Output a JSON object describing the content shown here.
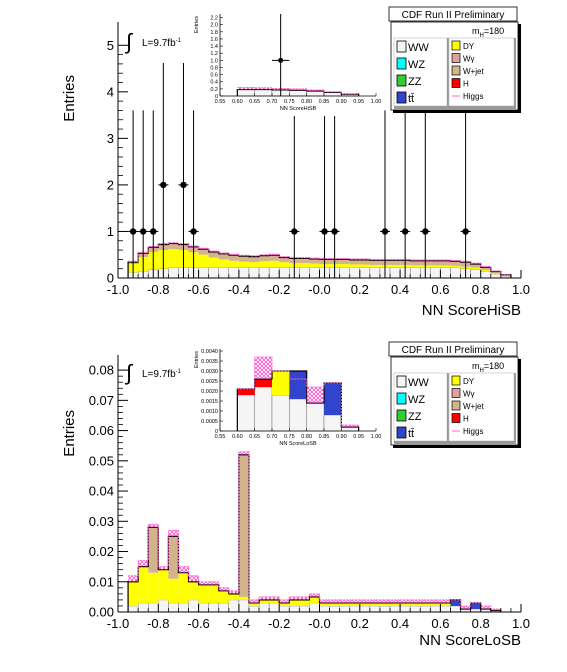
{
  "panels": [
    {
      "id": "top",
      "header": "CDF Run II Preliminary",
      "lumi_prefix": "L=9.7fb",
      "lumi_sup": "-1",
      "mass_label": "m",
      "mass_sub": "H",
      "mass_value": "=180",
      "colors": {
        "WW": "#f5f5f5",
        "WZ": "#00ffff",
        "ZZ": "#33cc33",
        "tt": "#3344cc",
        "DY": "#ffff00",
        "Wg": "#e0a0a0",
        "Wjet": "#d2b48c",
        "H": "#ff0000",
        "Higgs": "#ff66cc",
        "hatch": "#ff00ff"
      },
      "chart_data": {
        "type": "bar",
        "title": "",
        "xlabel": "NN ScoreHiSB",
        "ylabel": "Entries",
        "xlim": [
          -1.0,
          1.0
        ],
        "ylim": [
          0,
          5.5
        ],
        "xticks": [
          "-1.0",
          "-0.8",
          "-0.6",
          "-0.4",
          "-0.2",
          "-0.0",
          "0.2",
          "0.4",
          "0.6",
          "0.8",
          "1.0"
        ],
        "yticks": [
          "0",
          "1",
          "2",
          "3",
          "4",
          "5"
        ],
        "bin_edges": [
          -0.95,
          -0.9,
          -0.85,
          -0.8,
          -0.75,
          -0.7,
          -0.65,
          -0.6,
          -0.55,
          -0.5,
          -0.45,
          -0.4,
          -0.35,
          -0.3,
          -0.25,
          -0.2,
          -0.15,
          -0.1,
          -0.05,
          0.0,
          0.05,
          0.1,
          0.15,
          0.2,
          0.25,
          0.3,
          0.35,
          0.4,
          0.45,
          0.5,
          0.55,
          0.6,
          0.65,
          0.7,
          0.75,
          0.8,
          0.85,
          0.9,
          0.95
        ],
        "series": [
          {
            "name": "WW",
            "values": [
              0.12,
              0.15,
              0.18,
              0.2,
              0.22,
              0.22,
              0.22,
              0.22,
              0.22,
              0.22,
              0.22,
              0.22,
              0.22,
              0.22,
              0.22,
              0.22,
              0.22,
              0.22,
              0.22,
              0.22,
              0.22,
              0.22,
              0.22,
              0.22,
              0.22,
              0.22,
              0.22,
              0.22,
              0.22,
              0.22,
              0.22,
              0.22,
              0.22,
              0.2,
              0.18,
              0.14,
              0.08,
              0.04
            ]
          },
          {
            "name": "DY",
            "values": [
              0.18,
              0.3,
              0.38,
              0.4,
              0.4,
              0.38,
              0.33,
              0.28,
              0.22,
              0.18,
              0.15,
              0.13,
              0.12,
              0.14,
              0.15,
              0.12,
              0.1,
              0.1,
              0.09,
              0.08,
              0.08,
              0.08,
              0.07,
              0.07,
              0.06,
              0.06,
              0.06,
              0.06,
              0.05,
              0.05,
              0.05,
              0.05,
              0.04,
              0.04,
              0.04,
              0.03,
              0.02,
              0.01
            ]
          },
          {
            "name": "W+jet",
            "values": [
              0.04,
              0.08,
              0.1,
              0.12,
              0.12,
              0.12,
              0.12,
              0.12,
              0.12,
              0.12,
              0.12,
              0.12,
              0.12,
              0.12,
              0.12,
              0.1,
              0.1,
              0.1,
              0.1,
              0.1,
              0.1,
              0.1,
              0.1,
              0.1,
              0.1,
              0.1,
              0.1,
              0.1,
              0.1,
              0.1,
              0.1,
              0.1,
              0.1,
              0.1,
              0.08,
              0.06,
              0.04,
              0.02
            ]
          },
          {
            "name": "Higgs",
            "values": [
              0.36,
              0.55,
              0.68,
              0.74,
              0.76,
              0.74,
              0.69,
              0.64,
              0.58,
              0.54,
              0.51,
              0.49,
              0.48,
              0.5,
              0.51,
              0.46,
              0.44,
              0.44,
              0.43,
              0.42,
              0.42,
              0.42,
              0.41,
              0.41,
              0.4,
              0.4,
              0.4,
              0.4,
              0.39,
              0.39,
              0.39,
              0.39,
              0.38,
              0.36,
              0.32,
              0.25,
              0.15,
              0.07
            ]
          }
        ],
        "data_points": [
          {
            "x": -0.925,
            "y": 1
          },
          {
            "x": -0.875,
            "y": 1
          },
          {
            "x": -0.825,
            "y": 1
          },
          {
            "x": -0.775,
            "y": 2
          },
          {
            "x": -0.675,
            "y": 2
          },
          {
            "x": -0.625,
            "y": 1
          },
          {
            "x": -0.125,
            "y": 1
          },
          {
            "x": 0.025,
            "y": 1
          },
          {
            "x": 0.075,
            "y": 1
          },
          {
            "x": 0.325,
            "y": 1
          },
          {
            "x": 0.425,
            "y": 1
          },
          {
            "x": 0.525,
            "y": 1
          },
          {
            "x": 0.725,
            "y": 1
          }
        ],
        "inset": {
          "xlabel": "NN ScoreHiSB",
          "ylabel": "Entries",
          "xlim": [
            0.55,
            1.0
          ],
          "ylim": [
            0,
            2.3
          ],
          "xticks": [
            "0.55",
            "0.60",
            "0.65",
            "0.70",
            "0.75",
            "0.80",
            "0.85",
            "0.90",
            "0.95",
            "1.00"
          ],
          "yticks": [
            "0",
            "0.2",
            "0.4",
            "0.6",
            "0.8",
            "1.0",
            "1.2",
            "1.4",
            "1.6",
            "1.8",
            "2.0",
            "2.2"
          ],
          "bin_edges": [
            0.6,
            0.65,
            0.7,
            0.75,
            0.8,
            0.85,
            0.9,
            0.95
          ],
          "series": [
            {
              "name": "WW",
              "values": [
                0.18,
                0.18,
                0.17,
                0.16,
                0.14,
                0.1,
                0.05
              ]
            },
            {
              "name": "Higgs",
              "values": [
                0.24,
                0.23,
                0.21,
                0.2,
                0.17,
                0.12,
                0.06
              ]
            }
          ],
          "data_points": [
            {
              "x": 0.725,
              "y": 1
            }
          ]
        }
      }
    },
    {
      "id": "bottom",
      "header": "CDF Run II Preliminary",
      "lumi_prefix": "L=9.7fb",
      "lumi_sup": "-1",
      "mass_label": "m",
      "mass_sub": "H",
      "mass_value": "=180",
      "colors": {
        "WW": "#f5f5f5",
        "WZ": "#00ffff",
        "ZZ": "#33cc33",
        "tt": "#3344cc",
        "DY": "#ffff00",
        "Wg": "#e0a0a0",
        "Wjet": "#d2b48c",
        "H": "#ff0000",
        "Higgs": "#ff66cc",
        "hatch": "#ff00ff"
      },
      "chart_data": {
        "type": "bar",
        "title": "",
        "xlabel": "NN ScoreLoSB",
        "ylabel": "Entries",
        "xlim": [
          -1.0,
          1.0
        ],
        "ylim": [
          0,
          0.085
        ],
        "xticks": [
          "-1.0",
          "-0.8",
          "-0.6",
          "-0.4",
          "-0.2",
          "-0.0",
          "0.2",
          "0.4",
          "0.6",
          "0.8",
          "1.0"
        ],
        "yticks": [
          "0.00",
          "0.01",
          "0.02",
          "0.03",
          "0.04",
          "0.05",
          "0.06",
          "0.07",
          "0.08"
        ],
        "bin_edges": [
          -0.95,
          -0.9,
          -0.85,
          -0.8,
          -0.75,
          -0.7,
          -0.65,
          -0.6,
          -0.55,
          -0.5,
          -0.45,
          -0.4,
          -0.35,
          -0.3,
          -0.25,
          -0.2,
          -0.15,
          -0.1,
          -0.05,
          0.0,
          0.05,
          0.1,
          0.15,
          0.2,
          0.25,
          0.3,
          0.35,
          0.4,
          0.45,
          0.5,
          0.55,
          0.6,
          0.65,
          0.7,
          0.75,
          0.8,
          0.85,
          0.9
        ],
        "series": [
          {
            "name": "WW",
            "values": [
              0.002,
              0.003,
              0.003,
              0.004,
              0.003,
              0.003,
              0.004,
              0.003,
              0.003,
              0.003,
              0.004,
              0.004,
              0.002,
              0.003,
              0.003,
              0.002,
              0.002,
              0.002,
              0.003,
              0.002,
              0.002,
              0.002,
              0.002,
              0.002,
              0.002,
              0.002,
              0.002,
              0.002,
              0.002,
              0.002,
              0.002,
              0.002,
              0.002,
              0.001,
              0.001,
              0.001,
              0.0005
            ]
          },
          {
            "name": "DY",
            "values": [
              0.008,
              0.012,
              0.01,
              0.01,
              0.008,
              0.01,
              0.006,
              0.006,
              0.006,
              0.004,
              0.002,
              0.001,
              0.001,
              0.001,
              0.001,
              0.001,
              0.002,
              0.002,
              0.002,
              0.001,
              0.001,
              0.001,
              0.001,
              0.001,
              0.001,
              0.001,
              0.001,
              0.001,
              0.001,
              0.001,
              0.001,
              0.001,
              0.0,
              0.0,
              0.0,
              0.0,
              0.0
            ]
          },
          {
            "name": "W+jet",
            "values": [
              0.0,
              0.0,
              0.015,
              0.0,
              0.014,
              0.0,
              0.0,
              0.0,
              0.0,
              0.0,
              0.0,
              0.047,
              0.0,
              0.0,
              0.0,
              0.0,
              0.0,
              0.0,
              0.0,
              0.0,
              0.0,
              0.0,
              0.0,
              0.0,
              0.0,
              0.0,
              0.0,
              0.0,
              0.0,
              0.0,
              0.0,
              0.0,
              0.0,
              0.0,
              0.0,
              0.0,
              0.0
            ]
          },
          {
            "name": "tt",
            "values": [
              0.0,
              0.0,
              0.0,
              0.0,
              0.0,
              0.0,
              0.0,
              0.0,
              0.0,
              0.0,
              0.0,
              0.0,
              0.0,
              0.0,
              0.0,
              0.0,
              0.0,
              0.0,
              0.0,
              0.0,
              0.0,
              0.0,
              0.0,
              0.0,
              0.0,
              0.0,
              0.0,
              0.0,
              0.0,
              0.0,
              0.0,
              0.0,
              0.002,
              0.0,
              0.002,
              0.0,
              0.0
            ]
          },
          {
            "name": "Higgs",
            "values": [
              0.012,
              0.017,
              0.029,
              0.015,
              0.027,
              0.015,
              0.012,
              0.01,
              0.01,
              0.008,
              0.007,
              0.053,
              0.004,
              0.005,
              0.005,
              0.004,
              0.005,
              0.005,
              0.006,
              0.004,
              0.004,
              0.004,
              0.004,
              0.004,
              0.004,
              0.004,
              0.004,
              0.004,
              0.004,
              0.004,
              0.004,
              0.004,
              0.004,
              0.002,
              0.003,
              0.002,
              0.001
            ]
          }
        ],
        "inset": {
          "xlabel": "NN ScoreLoSB",
          "ylabel": "Entries",
          "xlim": [
            0.55,
            1.0
          ],
          "ylim": [
            0,
            0.0041
          ],
          "xticks": [
            "0.55",
            "0.60",
            "0.65",
            "0.70",
            "0.75",
            "0.80",
            "0.85",
            "0.90",
            "0.95",
            "1.00"
          ],
          "yticks": [
            "0",
            "0.0005",
            "0.0010",
            "0.0015",
            "0.0020",
            "0.0025",
            "0.0030",
            "0.0035",
            "0.0040"
          ],
          "bin_edges": [
            0.6,
            0.65,
            0.7,
            0.75,
            0.8,
            0.85,
            0.9,
            0.95
          ],
          "series": [
            {
              "name": "WW",
              "values": [
                0.0018,
                0.0022,
                0.0018,
                0.0016,
                0.0014,
                0.0008,
                0.0002
              ]
            },
            {
              "name": "DY",
              "values": [
                0.0,
                0.0,
                0.0012,
                0.0,
                0.0,
                0.0,
                0.0
              ]
            },
            {
              "name": "H",
              "values": [
                0.0003,
                0.0004,
                0.0,
                0.0,
                0.0,
                0.0,
                0.0
              ]
            },
            {
              "name": "tt",
              "values": [
                0.0,
                0.0,
                0.0,
                0.0014,
                0.0,
                0.0016,
                0.0
              ]
            },
            {
              "name": "Higgs",
              "values": [
                0.0021,
                0.0037,
                0.003,
                0.0026,
                0.0022,
                0.0024,
                0.0003
              ]
            }
          ]
        }
      }
    }
  ],
  "legend": {
    "left": [
      {
        "key": "WW",
        "label": "WW"
      },
      {
        "key": "WZ",
        "label": "WZ"
      },
      {
        "key": "ZZ",
        "label": "ZZ"
      },
      {
        "key": "tt",
        "label": "tt̄"
      }
    ],
    "right": [
      {
        "key": "DY",
        "label": "DY",
        "kind": "box"
      },
      {
        "key": "Wg",
        "label": "Wγ",
        "kind": "box"
      },
      {
        "key": "Wjet",
        "label": "W+jet",
        "kind": "box"
      },
      {
        "key": "H",
        "label": "H",
        "kind": "box"
      },
      {
        "key": "Higgs",
        "label": "Higgs",
        "kind": "line"
      }
    ]
  }
}
